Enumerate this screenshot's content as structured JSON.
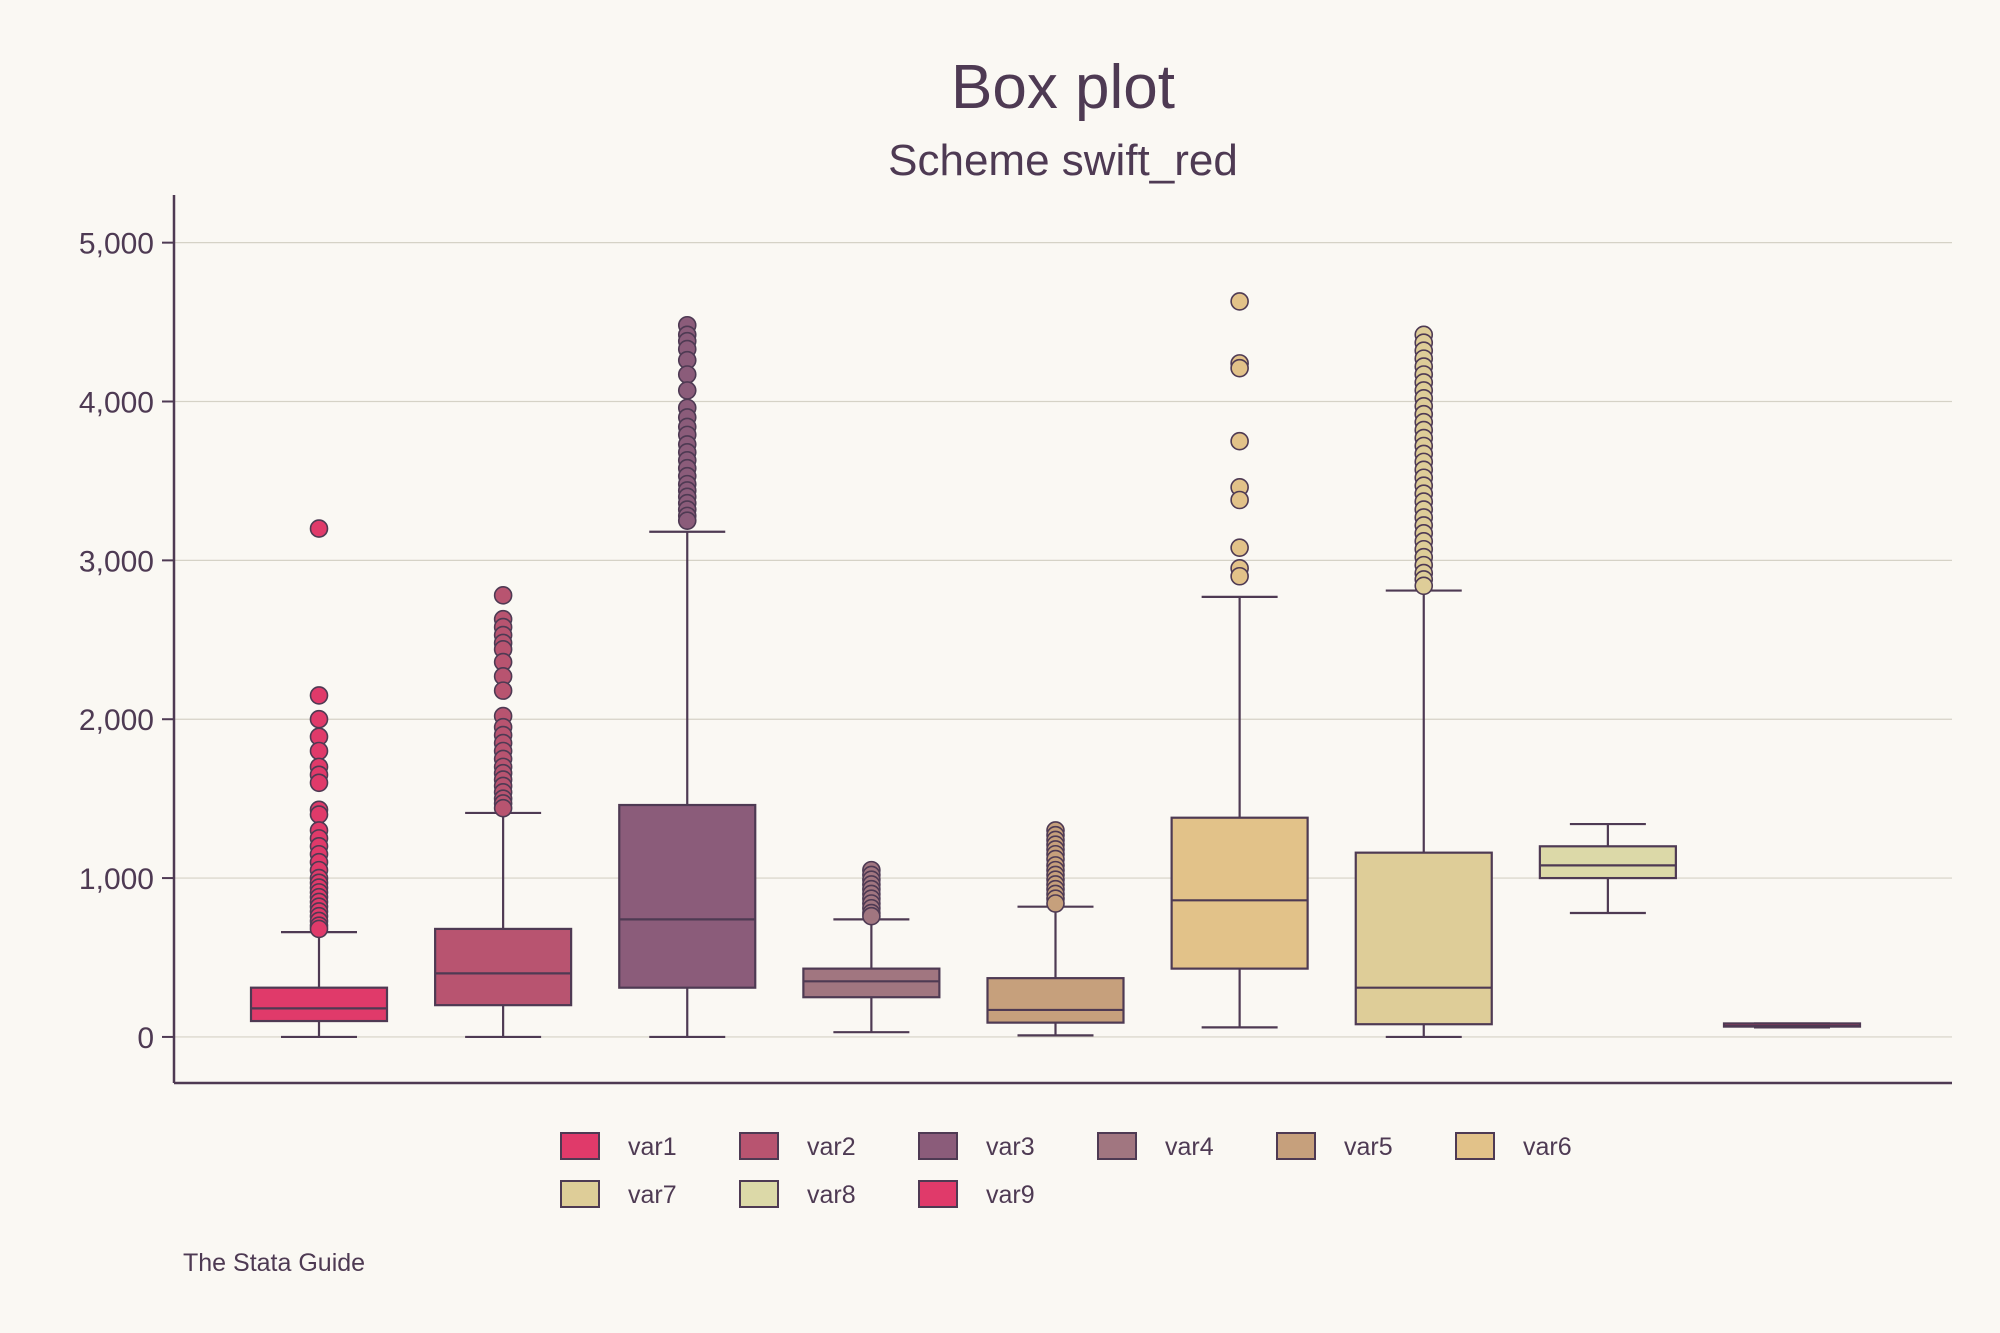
{
  "chart_data": {
    "type": "box",
    "title": "Box plot",
    "subtitle": "Scheme swift_red",
    "note": "The Stata Guide",
    "xlabel": "",
    "ylabel": "",
    "ylim": [
      -290,
      5300
    ],
    "yticks": [
      {
        "value": 0,
        "label": "0"
      },
      {
        "value": 1000,
        "label": "1,000"
      },
      {
        "value": 2000,
        "label": "2,000"
      },
      {
        "value": 3000,
        "label": "3,000"
      },
      {
        "value": 4000,
        "label": "4,000"
      },
      {
        "value": 5000,
        "label": "5,000"
      }
    ],
    "grid": true,
    "legend_position": "bottom",
    "series": [
      {
        "name": "var1",
        "color": "#e03a6a",
        "whisker_low": 0,
        "q1": 100,
        "median": 180,
        "q3": 310,
        "whisker_high": 660,
        "outliers": [
          3200,
          2150,
          2000,
          1890,
          1800,
          1700,
          1650,
          1600,
          1430,
          1400,
          1300,
          1250,
          1200,
          1150,
          1100,
          1050,
          1000,
          970,
          940,
          910,
          880,
          850,
          820,
          790,
          760,
          730,
          700,
          680
        ]
      },
      {
        "name": "var2",
        "color": "#b85470",
        "whisker_low": 0,
        "q1": 200,
        "median": 400,
        "q3": 680,
        "whisker_high": 1410,
        "outliers": [
          2780,
          2630,
          2580,
          2530,
          2480,
          2440,
          2360,
          2270,
          2180,
          2020,
          1950,
          1900,
          1850,
          1800,
          1750,
          1700,
          1660,
          1620,
          1580,
          1540,
          1500,
          1470,
          1440
        ]
      },
      {
        "name": "var3",
        "color": "#8b5c7a",
        "whisker_low": 0,
        "q1": 310,
        "median": 740,
        "q3": 1460,
        "whisker_high": 3180,
        "outliers": [
          4480,
          4420,
          4380,
          4330,
          4260,
          4170,
          4070,
          3960,
          3900,
          3840,
          3790,
          3730,
          3680,
          3630,
          3580,
          3530,
          3480,
          3440,
          3400,
          3360,
          3320,
          3280,
          3250
        ]
      },
      {
        "name": "var4",
        "color": "#a17680",
        "whisker_low": 30,
        "q1": 250,
        "median": 350,
        "q3": 430,
        "whisker_high": 740,
        "outliers": [
          1050,
          1020,
          990,
          960,
          930,
          900,
          870,
          840,
          810,
          780,
          760
        ]
      },
      {
        "name": "var5",
        "color": "#c6a07c",
        "whisker_low": 10,
        "q1": 90,
        "median": 170,
        "q3": 370,
        "whisker_high": 820,
        "outliers": [
          1300,
          1270,
          1240,
          1210,
          1180,
          1150,
          1120,
          1080,
          1050,
          1020,
          990,
          960,
          930,
          900,
          870,
          840
        ]
      },
      {
        "name": "var6",
        "color": "#e2c289",
        "whisker_low": 60,
        "q1": 430,
        "median": 860,
        "q3": 1380,
        "whisker_high": 2770,
        "outliers": [
          4630,
          4240,
          4210,
          3750,
          3460,
          3380,
          3080,
          2950,
          2900
        ]
      },
      {
        "name": "var7",
        "color": "#decd98",
        "whisker_low": 0,
        "q1": 80,
        "median": 310,
        "q3": 1160,
        "whisker_high": 2810,
        "outliers": [
          4420,
          4370,
          4320,
          4270,
          4220,
          4170,
          4120,
          4070,
          4020,
          3970,
          3920,
          3870,
          3820,
          3770,
          3720,
          3670,
          3620,
          3570,
          3520,
          3470,
          3420,
          3370,
          3320,
          3270,
          3220,
          3170,
          3120,
          3070,
          3020,
          2970,
          2920,
          2880,
          2840
        ]
      },
      {
        "name": "var8",
        "color": "#dcd9a8",
        "whisker_low": 780,
        "q1": 1000,
        "median": 1080,
        "q3": 1200,
        "whisker_high": 1340,
        "outliers": []
      },
      {
        "name": "var9",
        "color": "#e03a6a",
        "whisker_low": 60,
        "q1": 65,
        "median": 70,
        "q3": 85,
        "whisker_high": 85,
        "outliers": []
      }
    ]
  }
}
